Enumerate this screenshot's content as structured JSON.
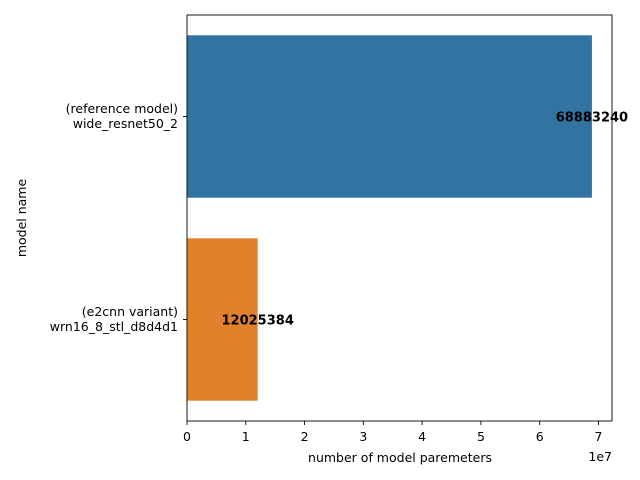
{
  "chart_data": {
    "type": "bar",
    "orientation": "horizontal",
    "categories": [
      [
        "(reference model)",
        "wide_resnet50_2"
      ],
      [
        "(e2cnn variant)",
        "wrn16_8_stl_d8d4d1"
      ]
    ],
    "values": [
      68883240,
      12025384
    ],
    "data_labels": [
      "68883240",
      "12025384"
    ],
    "colors": [
      "#3274a1",
      "#e1812c"
    ],
    "xlabel": "number of model paremeters",
    "ylabel": "model name",
    "xlim": [
      0,
      72300000
    ],
    "x_ticks": [
      0,
      10000000,
      20000000,
      30000000,
      40000000,
      50000000,
      60000000,
      70000000
    ],
    "x_tick_labels": [
      "0",
      "1",
      "2",
      "3",
      "4",
      "5",
      "6",
      "7"
    ],
    "x_offset_label": "1e7",
    "grid": false,
    "legend": "none"
  }
}
